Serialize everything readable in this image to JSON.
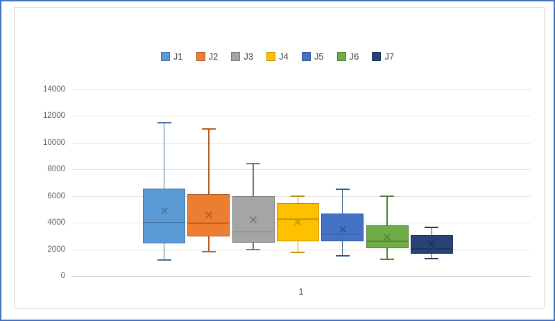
{
  "colors": {
    "outer_frame": "#4472C4",
    "chart_border": "#D9D9D9",
    "gridline": "#E4E2E0",
    "axis_line": "#C9C9C9",
    "tick_text": "#595959",
    "legend_text": "#404040",
    "background": "#FFFFFF"
  },
  "chart_data": {
    "type": "boxplot",
    "title": "",
    "grid": true,
    "legend": {
      "position": "top",
      "entries": [
        "J1",
        "J2",
        "J3",
        "J4",
        "J5",
        "J6",
        "J7"
      ]
    },
    "x_axis": {
      "categories": [
        "1"
      ]
    },
    "y_axis": {
      "min": 0,
      "max": 14000,
      "step": 2000,
      "ticks": [
        0,
        2000,
        4000,
        6000,
        8000,
        10000,
        12000,
        14000
      ]
    },
    "series": [
      {
        "name": "J1",
        "fill": "#5B9BD5",
        "border": "#41719C",
        "min": 1200,
        "q1": 2450,
        "median": 4000,
        "mean": 4900,
        "q3": 6550,
        "max": 11500
      },
      {
        "name": "J2",
        "fill": "#ED7D31",
        "border": "#AE5A21",
        "min": 1800,
        "q1": 2950,
        "median": 3950,
        "mean": 4600,
        "q3": 6150,
        "max": 11050
      },
      {
        "name": "J3",
        "fill": "#A5A5A5",
        "border": "#767676",
        "min": 2000,
        "q1": 2500,
        "median": 3300,
        "mean": 4200,
        "q3": 6000,
        "max": 8450
      },
      {
        "name": "J4",
        "fill": "#FFC000",
        "border": "#BF8F00",
        "min": 1750,
        "q1": 2600,
        "median": 4250,
        "mean": 4050,
        "q3": 5450,
        "max": 6000
      },
      {
        "name": "J5",
        "fill": "#4472C4",
        "border": "#31538F",
        "min": 1500,
        "q1": 2600,
        "median": 3150,
        "mean": 3500,
        "q3": 4700,
        "max": 6500
      },
      {
        "name": "J6",
        "fill": "#70AD47",
        "border": "#507E32",
        "min": 1250,
        "q1": 2100,
        "median": 2600,
        "mean": 2950,
        "q3": 3800,
        "max": 6000
      },
      {
        "name": "J7",
        "fill": "#264478",
        "border": "#1C3256",
        "min": 1300,
        "q1": 1650,
        "median": 2050,
        "mean": 2450,
        "q3": 3050,
        "max": 3650
      }
    ]
  }
}
